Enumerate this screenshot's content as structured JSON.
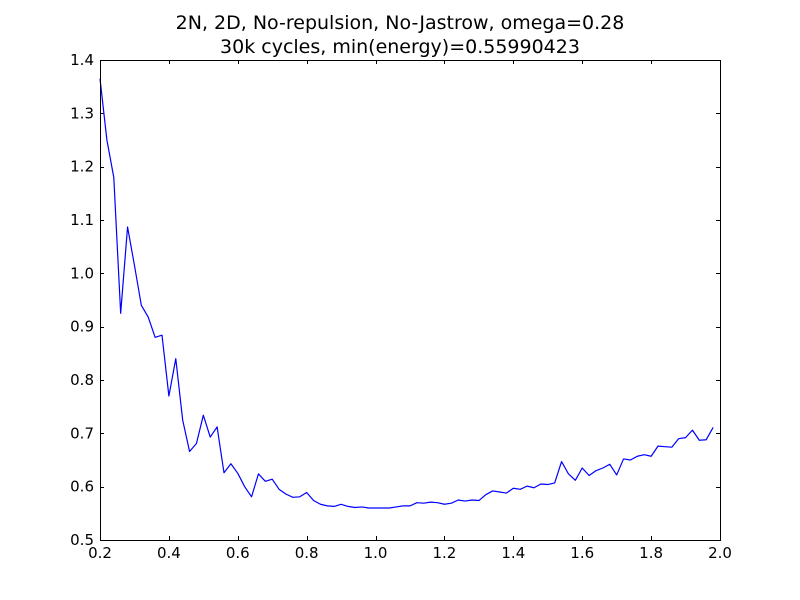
{
  "chart_data": {
    "type": "line",
    "title_lines": [
      "2N, 2D, No-repulsion, No-Jastrow, omega=0.28",
      "30k cycles, min(energy)=0.55990423"
    ],
    "xlabel": "",
    "ylabel": "",
    "xlim": [
      0.2,
      2.0
    ],
    "ylim": [
      0.5,
      1.4
    ],
    "xticks": [
      "0.2",
      "0.4",
      "0.6",
      "0.8",
      "1.0",
      "1.2",
      "1.4",
      "1.6",
      "1.8",
      "2.0"
    ],
    "yticks": [
      "0.5",
      "0.6",
      "0.7",
      "0.8",
      "0.9",
      "1.0",
      "1.1",
      "1.2",
      "1.3",
      "1.4"
    ],
    "grid": false,
    "line_color": "#0000ff",
    "series": [
      {
        "x": [
          0.2,
          0.22,
          0.24,
          0.26,
          0.28,
          0.3,
          0.32,
          0.34,
          0.36,
          0.38,
          0.4,
          0.42,
          0.44,
          0.46,
          0.48,
          0.5,
          0.52,
          0.54,
          0.56,
          0.58,
          0.6,
          0.62,
          0.64,
          0.66,
          0.68,
          0.7,
          0.72,
          0.74,
          0.76,
          0.78,
          0.8,
          0.82,
          0.84,
          0.86,
          0.88,
          0.9,
          0.92,
          0.94,
          0.96,
          0.98,
          1.0,
          1.02,
          1.04,
          1.06,
          1.08,
          1.1,
          1.12,
          1.14,
          1.16,
          1.18,
          1.2,
          1.22,
          1.24,
          1.26,
          1.28,
          1.3,
          1.32,
          1.34,
          1.36,
          1.38,
          1.4,
          1.42,
          1.44,
          1.46,
          1.48,
          1.5,
          1.52,
          1.54,
          1.56,
          1.58,
          1.6,
          1.62,
          1.64,
          1.66,
          1.68,
          1.7,
          1.72,
          1.74,
          1.76,
          1.78,
          1.8,
          1.82,
          1.84,
          1.86,
          1.88,
          1.9,
          1.92,
          1.94,
          1.96,
          1.98
        ],
        "values": [
          1.365,
          1.25,
          1.18,
          0.925,
          1.087,
          1.015,
          0.94,
          0.918,
          0.88,
          0.884,
          0.77,
          0.84,
          0.725,
          0.666,
          0.681,
          0.734,
          0.693,
          0.712,
          0.626,
          0.643,
          0.625,
          0.6,
          0.581,
          0.624,
          0.61,
          0.614,
          0.595,
          0.586,
          0.58,
          0.581,
          0.589,
          0.574,
          0.567,
          0.564,
          0.563,
          0.567,
          0.563,
          0.561,
          0.562,
          0.56,
          0.56,
          0.56,
          0.56,
          0.562,
          0.564,
          0.564,
          0.57,
          0.569,
          0.571,
          0.57,
          0.567,
          0.569,
          0.575,
          0.573,
          0.575,
          0.574,
          0.585,
          0.592,
          0.59,
          0.588,
          0.597,
          0.595,
          0.601,
          0.598,
          0.605,
          0.604,
          0.607,
          0.647,
          0.624,
          0.612,
          0.635,
          0.621,
          0.63,
          0.635,
          0.642,
          0.622,
          0.652,
          0.65,
          0.657,
          0.66,
          0.657,
          0.676,
          0.675,
          0.674,
          0.69,
          0.692,
          0.706,
          0.687,
          0.688,
          0.711
        ]
      }
    ]
  }
}
